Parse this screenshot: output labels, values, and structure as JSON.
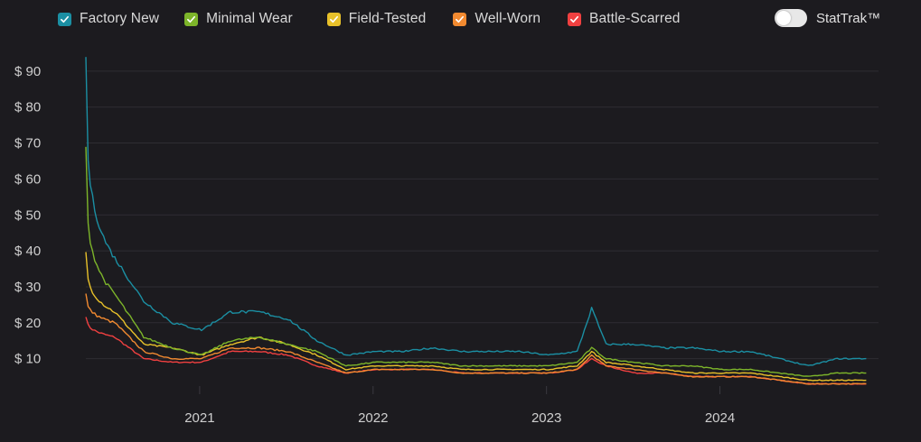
{
  "legend": [
    {
      "label": "Factory New",
      "color": "#1b8fa3"
    },
    {
      "label": "Minimal Wear",
      "color": "#7db52a"
    },
    {
      "label": "Field-Tested",
      "color": "#e8c12a"
    },
    {
      "label": "Well-Worn",
      "color": "#f28a30"
    },
    {
      "label": "Battle-Scarred",
      "color": "#f04040"
    }
  ],
  "toggle": {
    "label": "StatTrak™",
    "on": false
  },
  "chart_data": {
    "type": "line",
    "title": "",
    "xlabel": "",
    "ylabel": "",
    "x_ticks": [
      "2021",
      "2022",
      "2023",
      "2024"
    ],
    "y_ticks": [
      "$ 90",
      "$ 80",
      "$ 70",
      "$ 60",
      "$ 50",
      "$ 40",
      "$ 30",
      "$ 20",
      "$ 10"
    ],
    "ylim": [
      0,
      95
    ],
    "xlim": [
      "2020-05",
      "2024-11"
    ],
    "grid": true,
    "x": [
      "2020-05",
      "2020-07",
      "2020-09",
      "2020-11",
      "2021-01",
      "2021-03",
      "2021-05",
      "2021-07",
      "2021-09",
      "2021-11",
      "2022-01",
      "2022-03",
      "2022-05",
      "2022-07",
      "2022-09",
      "2022-11",
      "2023-01",
      "2023-03",
      "2023-04",
      "2023-05",
      "2023-07",
      "2023-09",
      "2023-11",
      "2024-01",
      "2024-03",
      "2024-05",
      "2024-07",
      "2024-09",
      "2024-11"
    ],
    "series": [
      {
        "name": "Factory New",
        "color": "#1b8fa3",
        "values": [
          94,
          38,
          26,
          20,
          18,
          23,
          23,
          21,
          15,
          11,
          12,
          12,
          13,
          12,
          12,
          12,
          11,
          12,
          24,
          14,
          14,
          13,
          13,
          12,
          12,
          10,
          8,
          10,
          10
        ]
      },
      {
        "name": "Minimal Wear",
        "color": "#7db52a",
        "values": [
          68,
          28,
          16,
          13,
          11,
          15,
          16,
          14,
          12,
          8,
          9,
          9,
          9,
          8,
          8,
          8,
          8,
          9,
          13,
          10,
          9,
          8,
          8,
          7,
          7,
          6,
          5,
          6,
          6
        ]
      },
      {
        "name": "Field-Tested",
        "color": "#e8c12a",
        "values": [
          40,
          23,
          14,
          13,
          11,
          14,
          16,
          14,
          11,
          7,
          8,
          8,
          8,
          7,
          7,
          7,
          7,
          8,
          12,
          9,
          8,
          7,
          6,
          6,
          6,
          5,
          4,
          4,
          4
        ]
      },
      {
        "name": "Well-Worn",
        "color": "#f28a30",
        "values": [
          28,
          20,
          12,
          10,
          10,
          13,
          13,
          12,
          9,
          6,
          7,
          7,
          7,
          6,
          6,
          6,
          6,
          7,
          11,
          8,
          7,
          6,
          5,
          5,
          5,
          4,
          3,
          3,
          3
        ]
      },
      {
        "name": "Battle-Scarred",
        "color": "#f04040",
        "values": [
          22,
          16,
          10,
          9,
          9,
          12,
          12,
          11,
          8,
          6,
          7,
          7,
          7,
          6,
          6,
          6,
          6,
          7,
          10,
          8,
          6,
          6,
          5,
          5,
          5,
          4,
          3,
          3,
          3
        ]
      }
    ]
  }
}
